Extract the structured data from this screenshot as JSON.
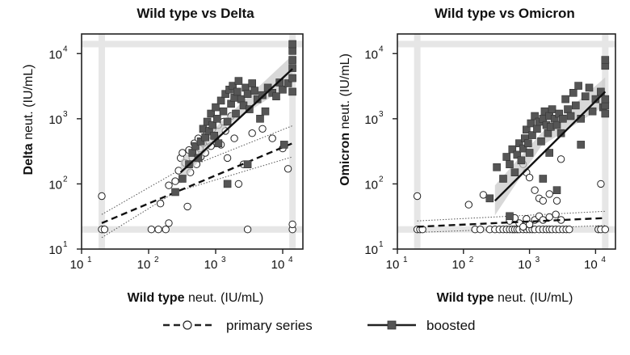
{
  "chart_data": [
    {
      "type": "scatter",
      "title": "Wild type vs Delta",
      "xlabel_bold": "Wild type",
      "xlabel_rest": " neut. (IU/mL)",
      "ylabel_bold": "Delta",
      "ylabel_rest": " neut. (IU/mL)",
      "x_scale": "log",
      "y_scale": "log",
      "xlim": [
        10,
        20000
      ],
      "ylim": [
        10,
        20000
      ],
      "x_ticks": [
        {
          "base": "10",
          "exp": "1"
        },
        {
          "base": "10",
          "exp": "2"
        },
        {
          "base": "10",
          "exp": "3"
        },
        {
          "base": "10",
          "exp": "4"
        }
      ],
      "y_ticks": [
        {
          "base": "10",
          "exp": "1"
        },
        {
          "base": "10",
          "exp": "2"
        },
        {
          "base": "10",
          "exp": "3"
        },
        {
          "base": "10",
          "exp": "4"
        }
      ],
      "limit_lines": {
        "x_low": 20,
        "x_high": 14000,
        "y_low": 20,
        "y_high": 14000
      },
      "series": [
        {
          "name": "primary series",
          "marker": "open-circle",
          "line": "dashed",
          "fit": {
            "x": [
              20,
              14000
            ],
            "y": [
              25,
              420
            ]
          },
          "ci": {
            "x": [
              20,
              250,
              14000
            ],
            "upper": [
              34,
              150,
              780
            ],
            "lower": [
              15,
              75,
              260
            ]
          },
          "points": [
            [
              20,
              20
            ],
            [
              22,
              20
            ],
            [
              20,
              65
            ],
            [
              110,
              20
            ],
            [
              140,
              20
            ],
            [
              180,
              20
            ],
            [
              200,
              25
            ],
            [
              3000,
              20
            ],
            [
              14000,
              20
            ],
            [
              14000,
              24
            ],
            [
              150,
              50
            ],
            [
              200,
              95
            ],
            [
              250,
              110
            ],
            [
              280,
              160
            ],
            [
              300,
              250
            ],
            [
              320,
              300
            ],
            [
              350,
              210
            ],
            [
              380,
              45
            ],
            [
              400,
              330
            ],
            [
              420,
              150
            ],
            [
              450,
              250
            ],
            [
              480,
              420
            ],
            [
              500,
              300
            ],
            [
              520,
              200
            ],
            [
              550,
              500
            ],
            [
              580,
              350
            ],
            [
              600,
              260
            ],
            [
              650,
              420
            ],
            [
              700,
              300
            ],
            [
              750,
              600
            ],
            [
              800,
              450
            ],
            [
              850,
              380
            ],
            [
              900,
              700
            ],
            [
              1000,
              520
            ],
            [
              1100,
              800
            ],
            [
              1200,
              400
            ],
            [
              1300,
              900
            ],
            [
              1400,
              650
            ],
            [
              1500,
              250
            ],
            [
              1700,
              1100
            ],
            [
              1900,
              500
            ],
            [
              2200,
              100
            ],
            [
              2600,
              200
            ],
            [
              3500,
              600
            ],
            [
              5000,
              700
            ],
            [
              7000,
              500
            ],
            [
              10000,
              350
            ],
            [
              12000,
              170
            ]
          ]
        },
        {
          "name": "boosted",
          "marker": "filled-square",
          "line": "solid",
          "fit": {
            "x": [
              300,
              14000
            ],
            "y": [
              150,
              5800
            ]
          },
          "ci": {
            "x": [
              300,
              1500,
              14000
            ],
            "upper": [
              230,
              1100,
              9500
            ],
            "lower": [
              100,
              800,
              3500
            ]
          },
          "points": [
            [
              250,
              75
            ],
            [
              320,
              120
            ],
            [
              400,
              200
            ],
            [
              450,
              300
            ],
            [
              500,
              380
            ],
            [
              550,
              250
            ],
            [
              600,
              450
            ],
            [
              650,
              700
            ],
            [
              700,
              520
            ],
            [
              750,
              900
            ],
            [
              800,
              650
            ],
            [
              850,
              1200
            ],
            [
              900,
              800
            ],
            [
              950,
              550
            ],
            [
              1000,
              1500
            ],
            [
              1050,
              1000
            ],
            [
              1100,
              420
            ],
            [
              1200,
              1900
            ],
            [
              1300,
              1300
            ],
            [
              1400,
              2400
            ],
            [
              1500,
              900
            ],
            [
              1600,
              2800
            ],
            [
              1700,
              1700
            ],
            [
              1800,
              3200
            ],
            [
              1900,
              2100
            ],
            [
              2000,
              1200
            ],
            [
              2100,
              2600
            ],
            [
              2200,
              3800
            ],
            [
              2400,
              2000
            ],
            [
              2600,
              1600
            ],
            [
              2800,
              3000
            ],
            [
              3000,
              2400
            ],
            [
              3200,
              1400
            ],
            [
              3500,
              3500
            ],
            [
              3800,
              2700
            ],
            [
              4200,
              2000
            ],
            [
              4600,
              1000
            ],
            [
              5000,
              2300
            ],
            [
              5500,
              1300
            ],
            [
              6000,
              3000
            ],
            [
              7000,
              2500
            ],
            [
              8000,
              2200
            ],
            [
              9000,
              3600
            ],
            [
              10000,
              2800
            ],
            [
              10500,
              400
            ],
            [
              12000,
              3500
            ],
            [
              14000,
              4200
            ],
            [
              14000,
              6000
            ],
            [
              14000,
              8000
            ],
            [
              14000,
              11000
            ],
            [
              14000,
              14000
            ],
            [
              14000,
              2600
            ],
            [
              1500,
              100
            ],
            [
              3000,
              200
            ]
          ]
        }
      ]
    },
    {
      "type": "scatter",
      "title": "Wild type vs Omicron",
      "xlabel_bold": "Wild type",
      "xlabel_rest": " neut. (IU/mL)",
      "ylabel_bold": "Omicron",
      "ylabel_rest": " neut. (IU/mL)",
      "x_scale": "log",
      "y_scale": "log",
      "xlim": [
        10,
        20000
      ],
      "ylim": [
        10,
        20000
      ],
      "x_ticks": [
        {
          "base": "10",
          "exp": "1"
        },
        {
          "base": "10",
          "exp": "2"
        },
        {
          "base": "10",
          "exp": "3"
        },
        {
          "base": "10",
          "exp": "4"
        }
      ],
      "y_ticks": [
        {
          "base": "10",
          "exp": "1"
        },
        {
          "base": "10",
          "exp": "2"
        },
        {
          "base": "10",
          "exp": "3"
        },
        {
          "base": "10",
          "exp": "4"
        }
      ],
      "limit_lines": {
        "x_low": 20,
        "x_high": 14000,
        "y_low": 20,
        "y_high": 14000
      },
      "series": [
        {
          "name": "primary series",
          "marker": "open-circle",
          "line": "dashed",
          "fit": {
            "x": [
              20,
              14000
            ],
            "y": [
              22,
              30
            ]
          },
          "ci": {
            "x": [
              20,
              14000
            ],
            "upper": [
              27,
              38
            ],
            "lower": [
              18,
              23
            ]
          },
          "points": [
            [
              20,
              20
            ],
            [
              22,
              20
            ],
            [
              24,
              20
            ],
            [
              20,
              65
            ],
            [
              120,
              48
            ],
            [
              150,
              20
            ],
            [
              180,
              20
            ],
            [
              200,
              68
            ],
            [
              250,
              20
            ],
            [
              300,
              20
            ],
            [
              350,
              20
            ],
            [
              400,
              20
            ],
            [
              450,
              20
            ],
            [
              500,
              20
            ],
            [
              550,
              20
            ],
            [
              600,
              20
            ],
            [
              650,
              20
            ],
            [
              700,
              20
            ],
            [
              800,
              20
            ],
            [
              900,
              20
            ],
            [
              1000,
              20
            ],
            [
              1100,
              20
            ],
            [
              1200,
              20
            ],
            [
              1400,
              20
            ],
            [
              1600,
              20
            ],
            [
              1800,
              20
            ],
            [
              2000,
              20
            ],
            [
              2200,
              20
            ],
            [
              2500,
              20
            ],
            [
              2800,
              20
            ],
            [
              3200,
              20
            ],
            [
              3600,
              20
            ],
            [
              4000,
              20
            ],
            [
              11000,
              20
            ],
            [
              12000,
              20
            ],
            [
              14000,
              20
            ],
            [
              500,
              27
            ],
            [
              600,
              30
            ],
            [
              700,
              25
            ],
            [
              800,
              22
            ],
            [
              900,
              29
            ],
            [
              1000,
              24
            ],
            [
              1200,
              28
            ],
            [
              1400,
              32
            ],
            [
              1600,
              28
            ],
            [
              2000,
              31
            ],
            [
              2500,
              34
            ],
            [
              3000,
              28
            ],
            [
              800,
              200
            ],
            [
              900,
              150
            ],
            [
              1000,
              125
            ],
            [
              1200,
              80
            ],
            [
              1400,
              60
            ],
            [
              1600,
              55
            ],
            [
              2000,
              70
            ],
            [
              2600,
              55
            ],
            [
              3000,
              240
            ],
            [
              12000,
              100
            ]
          ]
        },
        {
          "name": "boosted",
          "marker": "filled-square",
          "line": "solid",
          "fit": {
            "x": [
              300,
              14000
            ],
            "y": [
              55,
              2600
            ]
          },
          "ci": {
            "x": [
              300,
              1500,
              14000
            ],
            "upper": [
              95,
              600,
              4300
            ],
            "lower": [
              33,
              380,
              1600
            ]
          },
          "points": [
            [
              250,
              60
            ],
            [
              320,
              180
            ],
            [
              400,
              120
            ],
            [
              450,
              260
            ],
            [
              500,
              200
            ],
            [
              550,
              340
            ],
            [
              600,
              150
            ],
            [
              650,
              280
            ],
            [
              700,
              420
            ],
            [
              750,
              230
            ],
            [
              800,
              350
            ],
            [
              850,
              500
            ],
            [
              900,
              680
            ],
            [
              950,
              420
            ],
            [
              1000,
              300
            ],
            [
              1050,
              850
            ],
            [
              1100,
              560
            ],
            [
              1200,
              1100
            ],
            [
              1300,
              700
            ],
            [
              1400,
              900
            ],
            [
              1500,
              450
            ],
            [
              1600,
              1000
            ],
            [
              1700,
              1300
            ],
            [
              1800,
              800
            ],
            [
              1900,
              600
            ],
            [
              2000,
              1100
            ],
            [
              2100,
              750
            ],
            [
              2200,
              1400
            ],
            [
              2400,
              1000
            ],
            [
              2600,
              800
            ],
            [
              2800,
              1200
            ],
            [
              3000,
              600
            ],
            [
              3200,
              1000
            ],
            [
              3500,
              2000
            ],
            [
              3800,
              1400
            ],
            [
              4200,
              1100
            ],
            [
              4600,
              2500
            ],
            [
              5000,
              1600
            ],
            [
              5500,
              3200
            ],
            [
              6000,
              1000
            ],
            [
              7000,
              2200
            ],
            [
              8000,
              3000
            ],
            [
              9000,
              1300
            ],
            [
              10000,
              2000
            ],
            [
              12000,
              2600
            ],
            [
              13000,
              1500
            ],
            [
              14000,
              1200
            ],
            [
              14000,
              1600
            ],
            [
              14000,
              2000
            ],
            [
              14000,
              6500
            ],
            [
              14000,
              8000
            ],
            [
              500,
              32
            ],
            [
              1600,
              120
            ],
            [
              2600,
              80
            ],
            [
              2000,
              300
            ],
            [
              6000,
              400
            ]
          ]
        }
      ]
    }
  ],
  "legend": {
    "primary_label": "primary series",
    "boosted_label": "boosted"
  },
  "colors": {
    "ink": "#222222",
    "square_fill": "#555555",
    "ci_band": "#c8c8c8",
    "limit_band": "#e6e6e6",
    "frame": "#222222"
  }
}
